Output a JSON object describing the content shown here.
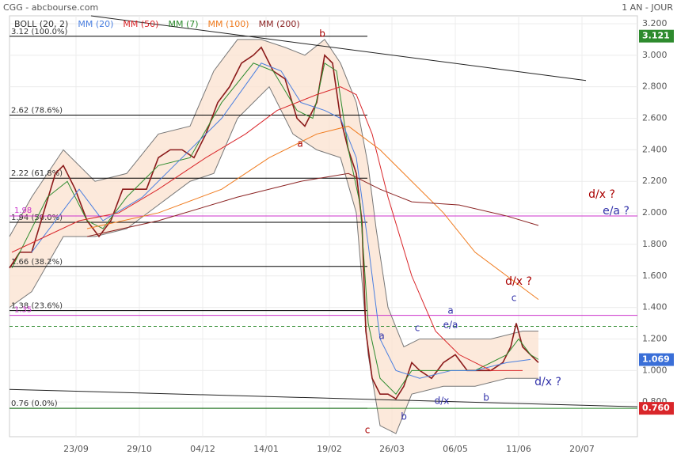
{
  "header": {
    "title": "CGG - abcbourse.com",
    "period": "1 AN - JOUR"
  },
  "chart_data": {
    "type": "line",
    "legend": [
      {
        "text": "BOLL (20, 2)",
        "color": "#333333"
      },
      {
        "text": "MM (20)",
        "color": "#4a7fe0"
      },
      {
        "text": "MM (50)",
        "color": "#d9262a"
      },
      {
        "text": "MM (7)",
        "color": "#2e8b2e"
      },
      {
        "text": "MM (100)",
        "color": "#f07b1e"
      },
      {
        "text": "MM (200)",
        "color": "#8b2323"
      }
    ],
    "xlim": [
      0,
      793
    ],
    "xticks": [
      {
        "value": 84,
        "label": "23/09"
      },
      {
        "value": 164,
        "label": "29/10"
      },
      {
        "value": 244,
        "label": "04/12"
      },
      {
        "value": 324,
        "label": "14/01"
      },
      {
        "value": 404,
        "label": "19/02"
      },
      {
        "value": 483,
        "label": "26/03"
      },
      {
        "value": 563,
        "label": "06/05"
      },
      {
        "value": 643,
        "label": "11/06"
      },
      {
        "value": 723,
        "label": "20/07"
      }
    ],
    "ylim": [
      0.58,
      3.25
    ],
    "yticks": [
      {
        "value": 0.8,
        "label": "0.800"
      },
      {
        "value": 1,
        "label": "1.000"
      },
      {
        "value": 1.2,
        "label": "1.200"
      },
      {
        "value": 1.4,
        "label": "1.400"
      },
      {
        "value": 1.6,
        "label": "1.600"
      },
      {
        "value": 1.8,
        "label": "1.800"
      },
      {
        "value": 2,
        "label": "2.000"
      },
      {
        "value": 2.2,
        "label": "2.200"
      },
      {
        "value": 2.4,
        "label": "2.400"
      },
      {
        "value": 2.6,
        "label": "2.600"
      },
      {
        "value": 2.8,
        "label": "2.800"
      },
      {
        "value": 3,
        "label": "3.000"
      },
      {
        "value": 3.2,
        "label": "3.200"
      }
    ],
    "band": {
      "upper": {
        "x": [
          0,
          28,
          68,
          108,
          148,
          188,
          228,
          258,
          288,
          318,
          348,
          373,
          398,
          418,
          438,
          453,
          463,
          478,
          498,
          518,
          568,
          608,
          648,
          668
        ],
        "values": [
          1.85,
          2.1,
          2.4,
          2.2,
          2.25,
          2.5,
          2.55,
          2.9,
          3.1,
          3.1,
          3.05,
          3.0,
          3.1,
          2.95,
          2.7,
          2.3,
          1.9,
          1.4,
          1.15,
          1.2,
          1.2,
          1.2,
          1.25,
          1.25
        ]
      },
      "lower": {
        "x": [
          0,
          28,
          68,
          108,
          148,
          188,
          228,
          258,
          288,
          328,
          358,
          388,
          418,
          438,
          453,
          468,
          488,
          508,
          548,
          588,
          628,
          668
        ],
        "values": [
          1.4,
          1.5,
          1.85,
          1.85,
          1.9,
          2.05,
          2.2,
          2.25,
          2.6,
          2.8,
          2.5,
          2.4,
          2.35,
          2.0,
          1.1,
          0.65,
          0.6,
          0.85,
          0.9,
          0.9,
          0.95,
          0.95
        ]
      }
    },
    "series": [
      {
        "name": "Cours",
        "color": "#8b1a1a",
        "width": 1.6,
        "x": [
          0,
          13,
          28,
          43,
          58,
          68,
          83,
          98,
          113,
          128,
          143,
          158,
          173,
          188,
          203,
          218,
          233,
          248,
          263,
          278,
          293,
          308,
          318,
          333,
          348,
          363,
          373,
          388,
          398,
          408,
          418,
          428,
          438,
          445,
          450,
          458,
          468,
          478,
          488,
          498,
          508,
          518,
          533,
          548,
          563,
          578,
          593,
          608,
          623,
          633,
          640,
          648,
          658,
          668
        ],
        "values": [
          1.65,
          1.75,
          1.75,
          2.0,
          2.25,
          2.3,
          2.15,
          1.95,
          1.85,
          1.95,
          2.15,
          2.15,
          2.15,
          2.35,
          2.4,
          2.4,
          2.35,
          2.5,
          2.7,
          2.8,
          2.95,
          3.0,
          3.05,
          2.9,
          2.85,
          2.6,
          2.55,
          2.7,
          3.0,
          2.95,
          2.6,
          2.4,
          2.25,
          1.95,
          1.25,
          0.95,
          0.85,
          0.85,
          0.82,
          0.9,
          1.05,
          1.0,
          0.95,
          1.05,
          1.1,
          1.0,
          1.0,
          1.0,
          1.05,
          1.15,
          1.3,
          1.15,
          1.1,
          1.05
        ]
      },
      {
        "name": "MM (7)",
        "color": "#2e8b2e",
        "width": 1,
        "x": [
          3,
          48,
          73,
          98,
          118,
          148,
          188,
          228,
          268,
          308,
          333,
          363,
          383,
          398,
          413,
          428,
          443,
          453,
          468,
          488,
          508,
          548,
          588,
          628,
          643,
          658,
          668
        ],
        "values": [
          1.65,
          2.1,
          2.2,
          1.95,
          1.9,
          2.1,
          2.3,
          2.35,
          2.7,
          2.95,
          2.9,
          2.65,
          2.6,
          2.95,
          2.9,
          2.4,
          2.05,
          1.3,
          0.95,
          0.85,
          1.0,
          1.0,
          1.0,
          1.1,
          1.2,
          1.1,
          1.07
        ]
      },
      {
        "name": "MM (20)",
        "color": "#4a7fe0",
        "width": 1,
        "x": [
          28,
          88,
          118,
          168,
          218,
          268,
          318,
          343,
          368,
          398,
          418,
          438,
          453,
          468,
          488,
          518,
          558,
          588,
          628,
          658
        ],
        "values": [
          1.75,
          2.15,
          1.95,
          2.1,
          2.35,
          2.6,
          2.95,
          2.9,
          2.7,
          2.65,
          2.6,
          2.35,
          1.8,
          1.2,
          1.0,
          0.95,
          1.0,
          1.0,
          1.05,
          1.07
        ]
      },
      {
        "name": "MM (50)",
        "color": "#d9262a",
        "width": 1,
        "x": [
          3,
          88,
          138,
          188,
          248,
          298,
          338,
          388,
          418,
          438,
          458,
          478,
          508,
          538,
          568,
          608,
          648
        ],
        "values": [
          1.75,
          1.95,
          2.0,
          2.15,
          2.35,
          2.5,
          2.65,
          2.75,
          2.8,
          2.75,
          2.5,
          2.1,
          1.6,
          1.25,
          1.1,
          1.0,
          1.0
        ]
      },
      {
        "name": "MM (100)",
        "color": "#f07b1e",
        "width": 1,
        "x": [
          98,
          188,
          268,
          328,
          388,
          428,
          468,
          508,
          548,
          588,
          628,
          668
        ],
        "values": [
          1.9,
          2.0,
          2.15,
          2.35,
          2.5,
          2.55,
          2.4,
          2.2,
          2.0,
          1.75,
          1.6,
          1.45
        ]
      },
      {
        "name": "MM (200)",
        "color": "#8b2323",
        "width": 1,
        "x": [
          98,
          188,
          288,
          368,
          428,
          468,
          508,
          568,
          628,
          668
        ],
        "values": [
          1.85,
          1.95,
          2.1,
          2.2,
          2.25,
          2.15,
          2.07,
          2.05,
          1.98,
          1.92
        ]
      }
    ],
    "fib": [
      {
        "value": 3.12,
        "label": "3.12  (100.0%)"
      },
      {
        "value": 2.62,
        "label": "2.62  (78.6%)"
      },
      {
        "value": 2.22,
        "label": "2.22  (61.8%)"
      },
      {
        "value": 1.94,
        "label": "1.94  (50.0%)"
      },
      {
        "value": 1.66,
        "label": "1.66  (38.2%)"
      },
      {
        "value": 1.38,
        "label": "1.38  (23.6%)"
      },
      {
        "value": 0.76,
        "label": "0.76  (0.0%)"
      }
    ],
    "levels": [
      {
        "value": 1.98,
        "label": "1.98",
        "color": "#cc33cc"
      },
      {
        "value": 1.35,
        "label": "1.35",
        "color": "#cc33cc"
      }
    ],
    "dashed": 1.28,
    "support": 0.76,
    "trendlines": [
      {
        "x": [
          103,
          728
        ],
        "values": [
          3.25,
          2.84
        ]
      },
      {
        "x": [
          0,
          793
        ],
        "values": [
          0.88,
          0.77
        ]
      }
    ],
    "price_tags": [
      {
        "value": 3.121,
        "label": "3.121",
        "color": "#2e8b2e"
      },
      {
        "value": 1.069,
        "label": "1.069",
        "color": "#3a6fd8"
      },
      {
        "value": 0.76,
        "label": "0.760",
        "color": "#d9262a"
      }
    ],
    "annotations": [
      "b",
      "a",
      "a",
      "c",
      "e/a",
      "a",
      "c",
      "d/x ?",
      "b",
      "d/x",
      "b",
      "c",
      "d/x ?",
      "d/x ?",
      "e/a ?"
    ]
  }
}
